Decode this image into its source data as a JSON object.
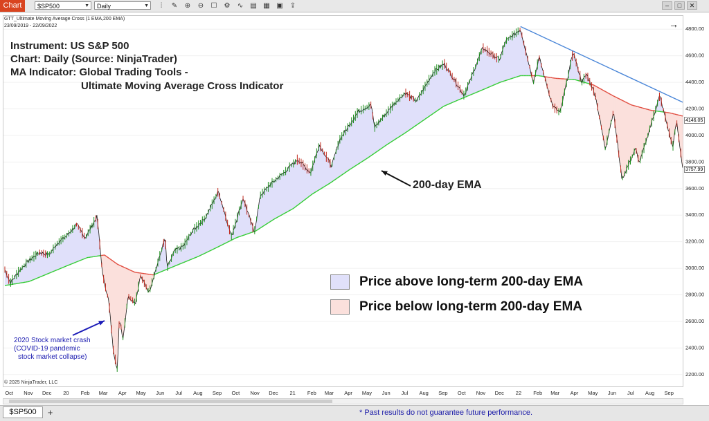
{
  "toolbar": {
    "chart_tab": "Chart",
    "symbol": "$SP500",
    "interval": "Daily"
  },
  "header": {
    "indicator_name": "GTT_Ultimate Moving Average Cross (1 EMA,200 EMA)",
    "date_range": "23/09/2019 - 22/09/2022"
  },
  "annotations": {
    "instrument": "Instrument: US S&P 500",
    "chart_source": "Chart: Daily (Source: NinjaTrader)",
    "ma_indicator_1": "MA Indicator: Global Trading Tools -",
    "ma_indicator_2": "Ultimate Moving Average Cross Indicator",
    "ema_label": "200-day EMA",
    "crash_line1": "2020 Stock market crash",
    "crash_line2": "(COVID-19 pandemic",
    "crash_line3": "stock market collapse)",
    "copyright": "© 2025 NinjaTrader, LLC"
  },
  "legend": {
    "above_label": "Price above long-term 200-day EMA",
    "below_label": "Price below long-term 200-day EMA",
    "above_color": "#e0e0fa",
    "below_color": "#fbe0dc"
  },
  "price_tags": {
    "tag1": "4146.05",
    "tag2": "3757.99"
  },
  "bottom": {
    "symbol_tab": "$SP500",
    "disclaimer": "*  Past results do not guarantee future performance."
  },
  "chart_data": {
    "type": "line",
    "y_scale": "linear",
    "ylim": [
      2100,
      4900
    ],
    "y_ticks": [
      2200,
      2400,
      2600,
      2800,
      3000,
      3200,
      3400,
      3600,
      3800,
      4000,
      4200,
      4400,
      4600,
      4800
    ],
    "y_tick_labels": [
      "2200.00",
      "2400.00",
      "2600.00",
      "2800.00",
      "3000.00",
      "3200.00",
      "3400.00",
      "3600.00",
      "3800.00",
      "4000.00",
      "4200.00",
      "4400.00",
      "4600.00",
      "4800.00"
    ],
    "x_range": [
      "2019-09-23",
      "2022-09-22"
    ],
    "x_tick_labels": [
      "Oct",
      "Nov",
      "Dec",
      "20",
      "Feb",
      "Mar",
      "Apr",
      "May",
      "Jun",
      "Jul",
      "Aug",
      "Sep",
      "Oct",
      "Nov",
      "Dec",
      "21",
      "Feb",
      "Mar",
      "Apr",
      "May",
      "Jun",
      "Jul",
      "Aug",
      "Sep",
      "Oct",
      "Nov",
      "Dec",
      "22",
      "Feb",
      "Mar",
      "Apr",
      "May",
      "Jun",
      "Jul",
      "Aug",
      "Sep"
    ],
    "x_tick_dates": [
      "2019-10-01",
      "2019-11-01",
      "2019-12-01",
      "2020-01-01",
      "2020-02-01",
      "2020-03-01",
      "2020-04-01",
      "2020-05-01",
      "2020-06-01",
      "2020-07-01",
      "2020-08-01",
      "2020-09-01",
      "2020-10-01",
      "2020-11-01",
      "2020-12-01",
      "2021-01-01",
      "2021-02-01",
      "2021-03-01",
      "2021-04-01",
      "2021-05-01",
      "2021-06-01",
      "2021-07-01",
      "2021-08-01",
      "2021-09-01",
      "2021-10-01",
      "2021-11-01",
      "2021-12-01",
      "2022-01-01",
      "2022-02-01",
      "2022-03-01",
      "2022-04-01",
      "2022-05-01",
      "2022-06-01",
      "2022-07-01",
      "2022-08-01",
      "2022-09-01"
    ],
    "series": [
      {
        "key": "price",
        "color": "#222222",
        "points": [
          [
            "2019-09-23",
            2990
          ],
          [
            "2019-10-02",
            2890
          ],
          [
            "2019-10-16",
            2980
          ],
          [
            "2019-11-01",
            3060
          ],
          [
            "2019-11-18",
            3120
          ],
          [
            "2019-12-03",
            3100
          ],
          [
            "2019-12-17",
            3190
          ],
          [
            "2020-01-02",
            3250
          ],
          [
            "2020-01-17",
            3330
          ],
          [
            "2020-01-31",
            3230
          ],
          [
            "2020-02-19",
            3390
          ],
          [
            "2020-02-28",
            2950
          ],
          [
            "2020-03-09",
            2750
          ],
          [
            "2020-03-16",
            2390
          ],
          [
            "2020-03-23",
            2230
          ],
          [
            "2020-03-26",
            2630
          ],
          [
            "2020-04-01",
            2470
          ],
          [
            "2020-04-09",
            2790
          ],
          [
            "2020-04-21",
            2740
          ],
          [
            "2020-04-29",
            2940
          ],
          [
            "2020-05-13",
            2820
          ],
          [
            "2020-05-27",
            3040
          ],
          [
            "2020-06-08",
            3230
          ],
          [
            "2020-06-11",
            3000
          ],
          [
            "2020-06-23",
            3130
          ],
          [
            "2020-07-08",
            3170
          ],
          [
            "2020-07-22",
            3280
          ],
          [
            "2020-08-12",
            3380
          ],
          [
            "2020-09-02",
            3580
          ],
          [
            "2020-09-23",
            3240
          ],
          [
            "2020-10-12",
            3530
          ],
          [
            "2020-10-30",
            3270
          ],
          [
            "2020-11-09",
            3550
          ],
          [
            "2020-11-27",
            3640
          ],
          [
            "2020-12-17",
            3720
          ],
          [
            "2021-01-08",
            3820
          ],
          [
            "2021-01-29",
            3720
          ],
          [
            "2021-02-12",
            3930
          ],
          [
            "2021-03-04",
            3770
          ],
          [
            "2021-03-17",
            3970
          ],
          [
            "2021-04-16",
            4180
          ],
          [
            "2021-05-07",
            4230
          ],
          [
            "2021-05-12",
            4060
          ],
          [
            "2021-06-15",
            4250
          ],
          [
            "2021-07-01",
            4320
          ],
          [
            "2021-07-19",
            4260
          ],
          [
            "2021-08-16",
            4480
          ],
          [
            "2021-09-02",
            4540
          ],
          [
            "2021-10-04",
            4300
          ],
          [
            "2021-11-03",
            4660
          ],
          [
            "2021-11-30",
            4570
          ],
          [
            "2021-12-10",
            4710
          ],
          [
            "2022-01-03",
            4800
          ],
          [
            "2022-01-24",
            4400
          ],
          [
            "2022-02-02",
            4590
          ],
          [
            "2022-02-24",
            4220
          ],
          [
            "2022-03-08",
            4170
          ],
          [
            "2022-03-29",
            4630
          ],
          [
            "2022-04-12",
            4400
          ],
          [
            "2022-04-20",
            4460
          ],
          [
            "2022-05-04",
            4300
          ],
          [
            "2022-05-20",
            3900
          ],
          [
            "2022-06-02",
            4180
          ],
          [
            "2022-06-16",
            3670
          ],
          [
            "2022-07-08",
            3900
          ],
          [
            "2022-07-14",
            3790
          ],
          [
            "2022-08-16",
            4300
          ],
          [
            "2022-09-06",
            3910
          ],
          [
            "2022-09-12",
            4110
          ],
          [
            "2022-09-22",
            3758
          ]
        ]
      },
      {
        "key": "ema200",
        "color": "#2ecc2e",
        "color_below": "#e0473a",
        "points": [
          [
            "2019-09-23",
            2870
          ],
          [
            "2019-11-01",
            2900
          ],
          [
            "2019-12-02",
            2960
          ],
          [
            "2020-01-02",
            3020
          ],
          [
            "2020-02-03",
            3080
          ],
          [
            "2020-03-02",
            3100
          ],
          [
            "2020-03-23",
            3030
          ],
          [
            "2020-04-20",
            2970
          ],
          [
            "2020-05-20",
            2950
          ],
          [
            "2020-06-20",
            3010
          ],
          [
            "2020-08-01",
            3090
          ],
          [
            "2020-09-01",
            3160
          ],
          [
            "2020-10-01",
            3230
          ],
          [
            "2020-11-01",
            3280
          ],
          [
            "2020-12-01",
            3370
          ],
          [
            "2021-01-01",
            3450
          ],
          [
            "2021-02-01",
            3560
          ],
          [
            "2021-03-01",
            3640
          ],
          [
            "2021-04-01",
            3740
          ],
          [
            "2021-05-01",
            3830
          ],
          [
            "2021-06-01",
            3930
          ],
          [
            "2021-07-01",
            4020
          ],
          [
            "2021-08-01",
            4120
          ],
          [
            "2021-09-01",
            4220
          ],
          [
            "2021-10-01",
            4280
          ],
          [
            "2021-11-01",
            4340
          ],
          [
            "2021-12-01",
            4400
          ],
          [
            "2022-01-03",
            4450
          ],
          [
            "2022-02-01",
            4450
          ],
          [
            "2022-03-01",
            4430
          ],
          [
            "2022-04-01",
            4420
          ],
          [
            "2022-05-01",
            4380
          ],
          [
            "2022-06-01",
            4300
          ],
          [
            "2022-07-01",
            4230
          ],
          [
            "2022-08-01",
            4190
          ],
          [
            "2022-09-01",
            4170
          ],
          [
            "2022-09-22",
            4146
          ]
        ]
      },
      {
        "key": "trendline",
        "color": "#4a86d8",
        "points": [
          [
            "2022-01-03",
            4820
          ],
          [
            "2022-09-22",
            4250
          ]
        ]
      }
    ]
  }
}
